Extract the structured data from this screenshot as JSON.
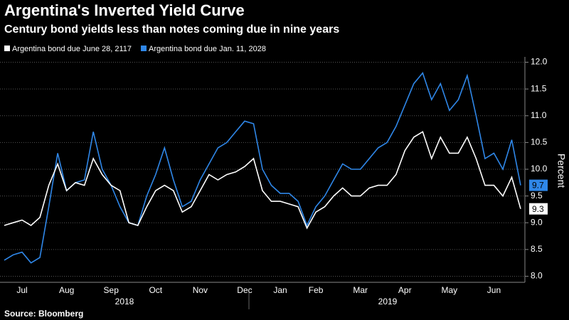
{
  "chart_data": {
    "type": "line",
    "title": "Argentina's Inverted Yield Curve",
    "subtitle": "Century bond yields less than notes coming due in nine years",
    "y_label": "Percent",
    "source": "Source: Bloomberg",
    "categories": [
      null,
      null,
      "Jul",
      null,
      null,
      null,
      null,
      "Aug",
      null,
      null,
      null,
      null,
      "Sep",
      null,
      null,
      null,
      null,
      "Oct",
      null,
      null,
      null,
      null,
      "Nov",
      null,
      null,
      null,
      null,
      "Dec",
      null,
      null,
      null,
      "Jan",
      null,
      null,
      null,
      "Feb",
      null,
      null,
      null,
      null,
      "Mar",
      null,
      null,
      null,
      null,
      "Apr",
      null,
      null,
      null,
      null,
      "May",
      null,
      null,
      null,
      null,
      "Jun",
      null,
      null,
      null
    ],
    "year_labels": [
      "2018",
      "2019"
    ],
    "series": [
      {
        "name": "Argentina bond due June 28, 2117",
        "color": "#ffffff",
        "end_label": "9.3",
        "values": [
          8.95,
          9.0,
          9.05,
          8.95,
          9.1,
          9.7,
          10.1,
          9.6,
          9.75,
          9.7,
          10.2,
          9.9,
          9.7,
          9.6,
          9.0,
          8.95,
          9.3,
          9.6,
          9.7,
          9.6,
          9.2,
          9.3,
          9.6,
          9.9,
          9.8,
          9.9,
          9.95,
          10.05,
          10.2,
          9.6,
          9.4,
          9.4,
          9.35,
          9.3,
          8.9,
          9.2,
          9.3,
          9.5,
          9.65,
          9.5,
          9.5,
          9.65,
          9.7,
          9.7,
          9.9,
          10.35,
          10.6,
          10.7,
          10.2,
          10.6,
          10.3,
          10.3,
          10.6,
          10.2,
          9.7,
          9.7,
          9.5,
          9.85,
          9.26
        ]
      },
      {
        "name": "Argentina bond due Jan. 11, 2028",
        "color": "#2f87e8",
        "end_label": "9.7",
        "values": [
          8.3,
          8.4,
          8.45,
          8.25,
          8.35,
          9.3,
          10.3,
          9.6,
          9.75,
          9.8,
          10.7,
          10.0,
          9.7,
          9.3,
          9.0,
          8.95,
          9.5,
          9.9,
          10.4,
          9.8,
          9.3,
          9.4,
          9.8,
          10.1,
          10.4,
          10.5,
          10.7,
          10.9,
          10.85,
          10.0,
          9.7,
          9.55,
          9.55,
          9.4,
          8.95,
          9.3,
          9.5,
          9.8,
          10.1,
          10.0,
          10.0,
          10.2,
          10.4,
          10.5,
          10.8,
          11.2,
          11.6,
          11.8,
          11.3,
          11.6,
          11.1,
          11.3,
          11.75,
          11.0,
          10.2,
          10.3,
          10.0,
          10.55,
          9.7
        ]
      }
    ],
    "ylim": [
      7.9,
      12.1
    ],
    "yticks": [
      {
        "value": 8,
        "label": "8.0"
      },
      {
        "value": 8.5,
        "label": "8.5"
      },
      {
        "value": 9,
        "label": "9.0"
      },
      {
        "value": 9.5,
        "label": "9.5"
      },
      {
        "value": 10,
        "label": "10.0"
      },
      {
        "value": 10.5,
        "label": "10.5"
      },
      {
        "value": 11,
        "label": "11.0"
      },
      {
        "value": 11.5,
        "label": "11.5"
      },
      {
        "value": 12,
        "label": "12.0"
      }
    ],
    "grid": true
  }
}
